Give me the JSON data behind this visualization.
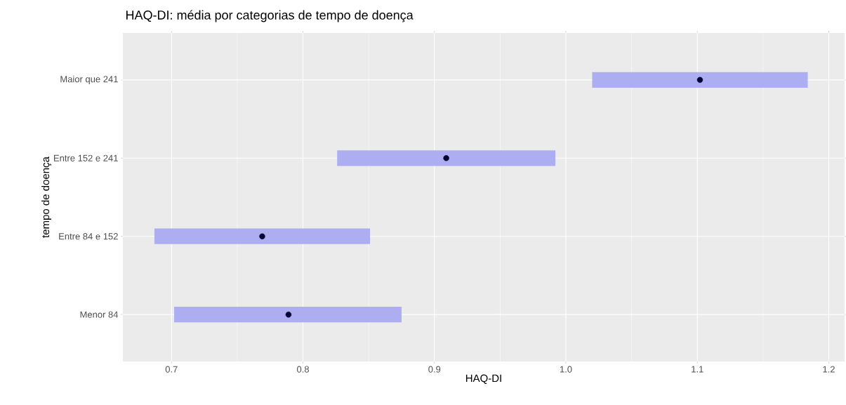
{
  "chart_data": {
    "type": "bar",
    "orientation": "horizontal",
    "title": "HAQ-DI: média por categorias de tempo de doença",
    "xlabel": "HAQ-DI",
    "ylabel": "tempo de doença",
    "categories": [
      "Maior que 241",
      "Entre 152 e 241",
      "Entre 84 e 152",
      "Menor 84"
    ],
    "series": [
      {
        "color": "#adadf2",
        "base": [
          1.02,
          0.826,
          0.687,
          0.702
        ],
        "values": [
          0.164,
          0.166,
          0.164,
          0.173
        ]
      },
      {
        "type": "scatter",
        "color": "#000033",
        "marker": "circle",
        "values": [
          1.102,
          0.909,
          0.769,
          0.789
        ]
      }
    ],
    "xlim": [
      0.663,
      1.212
    ],
    "xticks": [
      0.7,
      0.8,
      0.9,
      {
        "value": 1.0,
        "label": "1.0"
      },
      1.1,
      1.2
    ],
    "grid": true
  }
}
